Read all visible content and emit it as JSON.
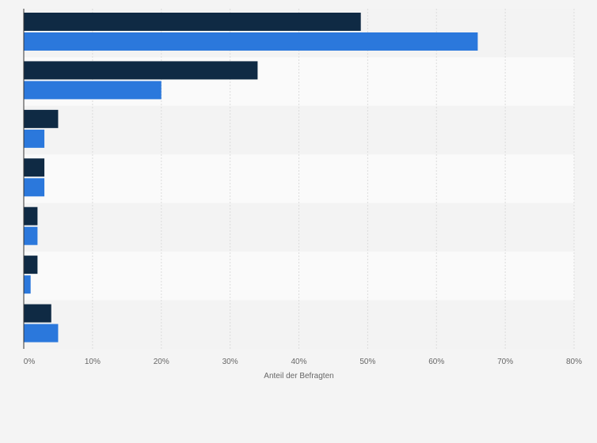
{
  "chart_data": {
    "type": "bar",
    "orientation": "horizontal",
    "title": "",
    "xlabel": "Anteil der Befragten",
    "ylabel": "",
    "xlim": [
      0,
      80
    ],
    "ticks": [
      "0%",
      "10%",
      "20%",
      "30%",
      "40%",
      "50%",
      "60%",
      "70%",
      "80%"
    ],
    "tick_values": [
      0,
      10,
      20,
      30,
      40,
      50,
      60,
      70,
      80
    ],
    "grid": true,
    "legend": "none",
    "categories": [
      "",
      "",
      "",
      "",
      "",
      "",
      ""
    ],
    "series": [
      {
        "color": "#0f2a44",
        "values": [
          49,
          34,
          5,
          3,
          2,
          2,
          4
        ]
      },
      {
        "color": "#2b78dc",
        "values": [
          66,
          20,
          3,
          3,
          2,
          1,
          5
        ]
      }
    ]
  }
}
